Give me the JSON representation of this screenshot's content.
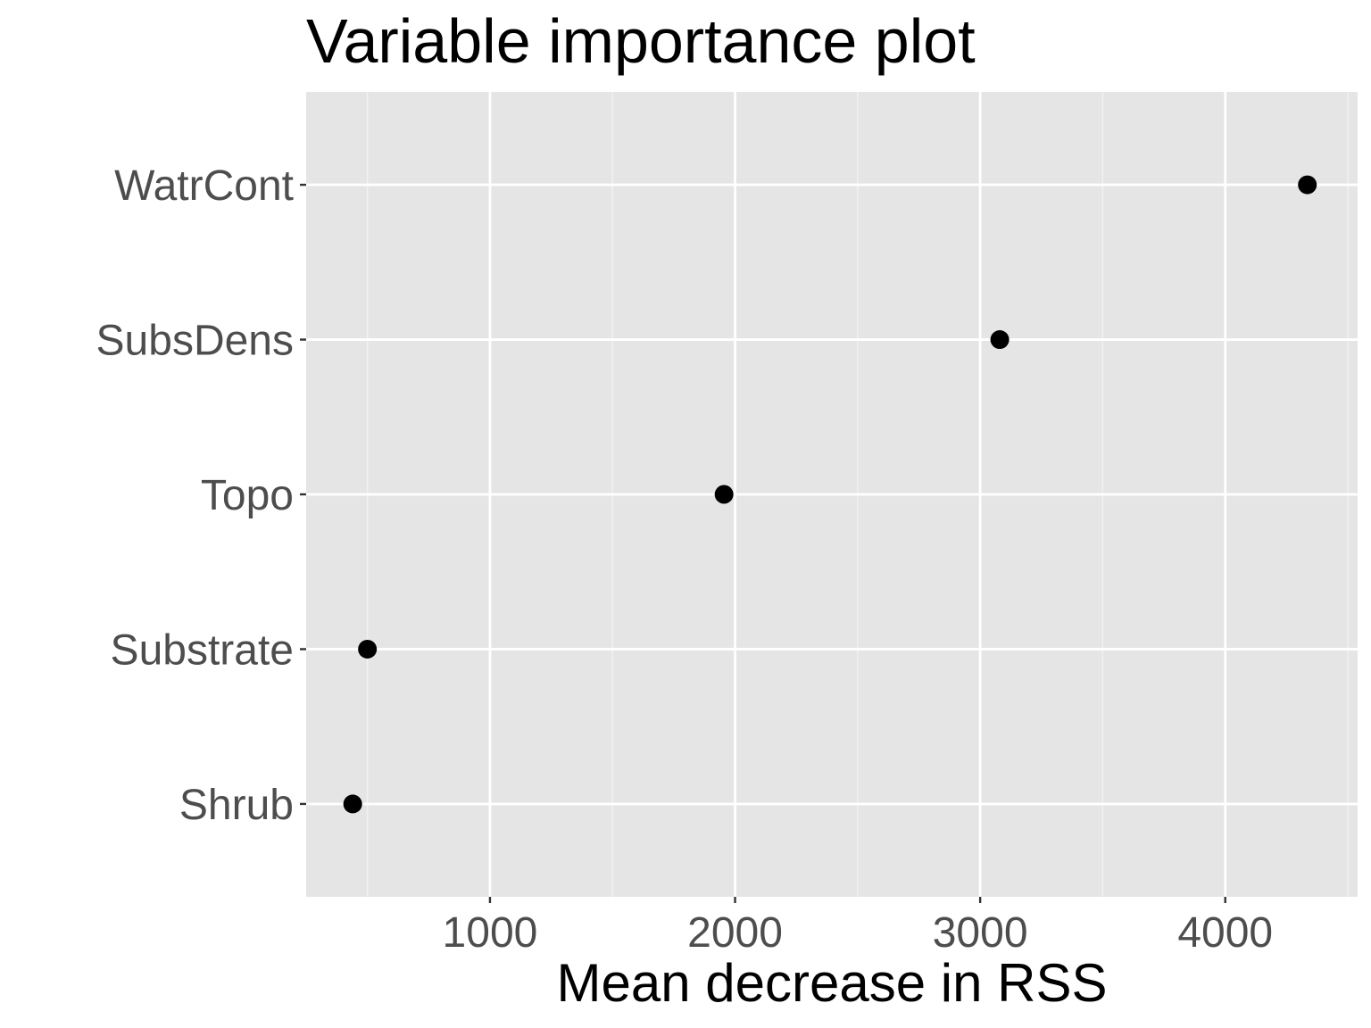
{
  "chart_data": {
    "type": "scatter",
    "title": "Variable importance plot",
    "xlabel": "Mean decrease in RSS",
    "ylabel": "",
    "categories": [
      "Shrub",
      "Substrate",
      "Topo",
      "SubsDens",
      "WatrCont"
    ],
    "values": [
      440,
      500,
      1955,
      3080,
      4335
    ],
    "xlim": [
      250,
      4540
    ],
    "x_ticks": [
      1000,
      2000,
      3000,
      4000
    ],
    "grid": true,
    "legend": "none",
    "colors": {
      "panel_background": "#e5e5e5",
      "grid_major": "#ffffff",
      "grid_minor": "#f2f2f2",
      "point": "#000000",
      "tick_text": "#4d4d4d",
      "tick_mark": "#333333"
    }
  }
}
